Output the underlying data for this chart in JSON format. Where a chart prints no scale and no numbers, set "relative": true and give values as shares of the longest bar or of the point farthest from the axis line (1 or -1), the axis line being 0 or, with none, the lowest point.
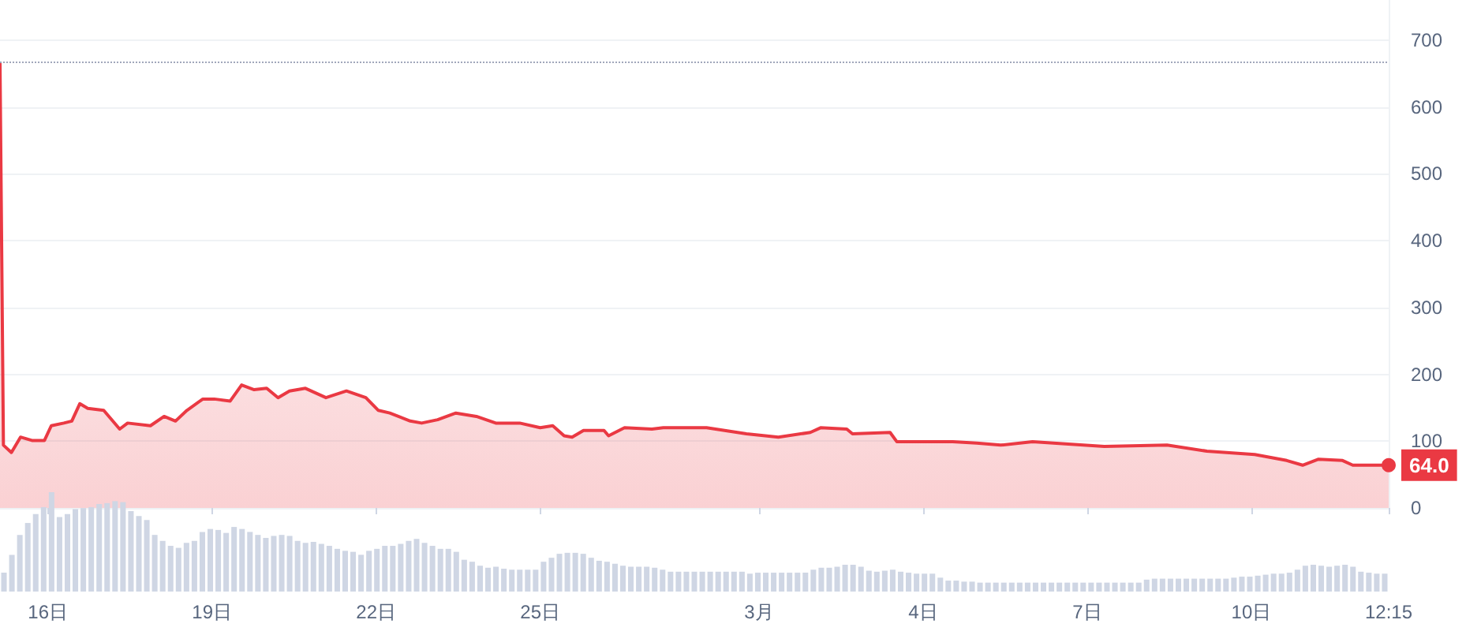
{
  "chart_data": [
    {
      "type": "area",
      "color": "#ea3943",
      "x": [
        "--02-15T03:00",
        "--02-15T04:30",
        "--02-15T08:00",
        "--02-15T12:00",
        "--02-15T17:00",
        "--02-15T22:30",
        "--02-16T01:30",
        "--02-16T07:00",
        "--02-16T10:30",
        "--02-16T14:00",
        "--02-16T17:30",
        "--02-17T00:30",
        "--02-17T07:30",
        "--02-17T11:00",
        "--02-17T21:00",
        "--02-18T03:00",
        "--02-18T08:00",
        "--02-18T13:00",
        "--02-18T20:00",
        "--02-19T01:00",
        "--02-19T08:00",
        "--02-19T13:00",
        "--02-19T18:30",
        "--02-20T00:00",
        "--02-20T05:00",
        "--02-20T10:00",
        "--02-20T17:00",
        "--02-21T02:00",
        "--02-21T11:00",
        "--02-21T19:30",
        "--02-22T01:00",
        "--02-22T06:00",
        "--02-22T15:00",
        "--02-22T20:00",
        "--02-23T03:00",
        "--02-23T11:00",
        "--02-23T20:00",
        "--02-24T04:30",
        "--02-24T15:00",
        "--02-25T00:00",
        "--02-25T05:30",
        "--02-25T10:30",
        "--02-25T14:00",
        "--02-25T19:00",
        "--02-26T04:00",
        "--02-26T06:00",
        "--02-26T13:00",
        "--02-27T01:00",
        "--02-27T06:00",
        "--02-28T01:00",
        "--02-28T18:30",
        "--03-01T08:30",
        "--03-01T22:30",
        "--03-02T03:00",
        "--03-02T14:30",
        "--03-02T17:00",
        "--03-03T09:30",
        "--03-03T12:30",
        "--03-04T06:00",
        "--03-04T13:00",
        "--03-04T23:30",
        "--03-05T10:00",
        "--03-06T00:00",
        "--03-07T07:30",
        "--03-08T11:00",
        "--03-09T04:30",
        "--03-10T01:30",
        "--03-10T15:30",
        "--03-10T22:30",
        "--03-11T05:30",
        "--03-11T16:00",
        "--03-11T20:30",
        "--03-12T12:15"
      ],
      "values": [
        667,
        94,
        83,
        106,
        101,
        101,
        123,
        127,
        130,
        156,
        149,
        146,
        118,
        127,
        123,
        137,
        130,
        146,
        163,
        163,
        160,
        184,
        177,
        179,
        165,
        175,
        179,
        165,
        175,
        165,
        146,
        142,
        130,
        127,
        132,
        142,
        137,
        127,
        127,
        120,
        123,
        108,
        106,
        116,
        116,
        108,
        120,
        118,
        120,
        120,
        111,
        106,
        113,
        120,
        118,
        111,
        113,
        99,
        99,
        99,
        97,
        94,
        99,
        92,
        94,
        85,
        80,
        71,
        64,
        73,
        71,
        64,
        64
      ],
      "xlim": [
        "--02-15T03:00",
        "--03-12T12:15"
      ],
      "xticks": [
        {
          "value": "--02-16",
          "label": "16日"
        },
        {
          "value": "--02-19",
          "label": "19日"
        },
        {
          "value": "--02-22",
          "label": "22日"
        },
        {
          "value": "--02-25",
          "label": "25日"
        },
        {
          "value": "--03-01",
          "label": "3月"
        },
        {
          "value": "--03-04",
          "label": "4日"
        },
        {
          "value": "--03-07",
          "label": "7日"
        },
        {
          "value": "--03-10",
          "label": "10日"
        },
        {
          "value": "--03-12T12:15",
          "label": "12:15"
        }
      ],
      "ylim": [
        0,
        760
      ],
      "yticks": [
        0,
        100,
        200,
        300,
        400,
        500,
        600,
        700
      ],
      "grid": "y",
      "marker": "none",
      "line_style": "solid",
      "ref_lines": [
        {
          "axis": "y",
          "value": 667,
          "color": "#a1a7bb",
          "line_style": "dotted"
        }
      ],
      "annotations": [
        {
          "text": "64.0",
          "x": "--03-12T12:15",
          "y": 64
        }
      ]
    },
    {
      "type": "bar",
      "relative": true,
      "color": "#cfd6e4",
      "categories": [
        null,
        null,
        null,
        null,
        null,
        null,
        null,
        null,
        null,
        null,
        null,
        null,
        null,
        null,
        null,
        null,
        null,
        null,
        null,
        null,
        null,
        null,
        null,
        null,
        null,
        null,
        null,
        null,
        null,
        null,
        null,
        null,
        null,
        null,
        null,
        null,
        null,
        null,
        null,
        null,
        null,
        null,
        null,
        null,
        null,
        null,
        null,
        null,
        null,
        null,
        null,
        null,
        null,
        null,
        null,
        null,
        null,
        null,
        null,
        null,
        null,
        null,
        null,
        null,
        null,
        null,
        null,
        null,
        null,
        null,
        null,
        null,
        null,
        null,
        null,
        null,
        null,
        null,
        null,
        null,
        null,
        null,
        null,
        null,
        null,
        null,
        null,
        null,
        null,
        null,
        null,
        null,
        null,
        null,
        null,
        null,
        null,
        null,
        null,
        null,
        null,
        null,
        null,
        null,
        null,
        null,
        null,
        null,
        null,
        null,
        null,
        null,
        null,
        null,
        null,
        null,
        null,
        null,
        null,
        null,
        null,
        null,
        null,
        null,
        null,
        null,
        null,
        null,
        null,
        null,
        null,
        null,
        null,
        null,
        null,
        null,
        null,
        null,
        null,
        null,
        null,
        null,
        null,
        null,
        null,
        null,
        null,
        null,
        null,
        null,
        null,
        null,
        null,
        null,
        null,
        null,
        null,
        null,
        null,
        null,
        null,
        null,
        null,
        null,
        null,
        null,
        null,
        null,
        null,
        null,
        null,
        null,
        null,
        null,
        null
      ],
      "values": [
        0.19,
        0.37,
        0.57,
        0.69,
        0.78,
        0.85,
        1,
        0.75,
        0.78,
        0.83,
        0.84,
        0.85,
        0.88,
        0.89,
        0.91,
        0.9,
        0.81,
        0.76,
        0.72,
        0.57,
        0.51,
        0.46,
        0.44,
        0.49,
        0.51,
        0.6,
        0.63,
        0.62,
        0.59,
        0.65,
        0.63,
        0.6,
        0.57,
        0.54,
        0.56,
        0.57,
        0.56,
        0.51,
        0.49,
        0.5,
        0.48,
        0.46,
        0.43,
        0.41,
        0.4,
        0.37,
        0.41,
        0.43,
        0.46,
        0.46,
        0.48,
        0.51,
        0.53,
        0.49,
        0.46,
        0.43,
        0.43,
        0.4,
        0.32,
        0.3,
        0.26,
        0.24,
        0.25,
        0.23,
        0.22,
        0.22,
        0.22,
        0.22,
        0.3,
        0.34,
        0.38,
        0.39,
        0.39,
        0.38,
        0.34,
        0.31,
        0.3,
        0.28,
        0.26,
        0.25,
        0.25,
        0.25,
        0.24,
        0.22,
        0.2,
        0.2,
        0.2,
        0.2,
        0.2,
        0.2,
        0.2,
        0.2,
        0.2,
        0.2,
        0.18,
        0.19,
        0.19,
        0.19,
        0.19,
        0.19,
        0.19,
        0.19,
        0.22,
        0.24,
        0.24,
        0.25,
        0.27,
        0.27,
        0.25,
        0.21,
        0.2,
        0.21,
        0.22,
        0.2,
        0.19,
        0.18,
        0.18,
        0.18,
        0.14,
        0.11,
        0.11,
        0.1,
        0.1,
        0.09,
        0.09,
        0.09,
        0.09,
        0.09,
        0.09,
        0.09,
        0.09,
        0.09,
        0.09,
        0.09,
        0.09,
        0.09,
        0.09,
        0.09,
        0.09,
        0.09,
        0.09,
        0.09,
        0.09,
        0.09,
        0.12,
        0.13,
        0.13,
        0.13,
        0.13,
        0.13,
        0.13,
        0.13,
        0.13,
        0.13,
        0.13,
        0.14,
        0.15,
        0.15,
        0.16,
        0.17,
        0.18,
        0.18,
        0.19,
        0.22,
        0.26,
        0.27,
        0.26,
        0.25,
        0.26,
        0.27,
        0.25,
        0.2,
        0.19,
        0.18,
        0.18
      ]
    }
  ]
}
